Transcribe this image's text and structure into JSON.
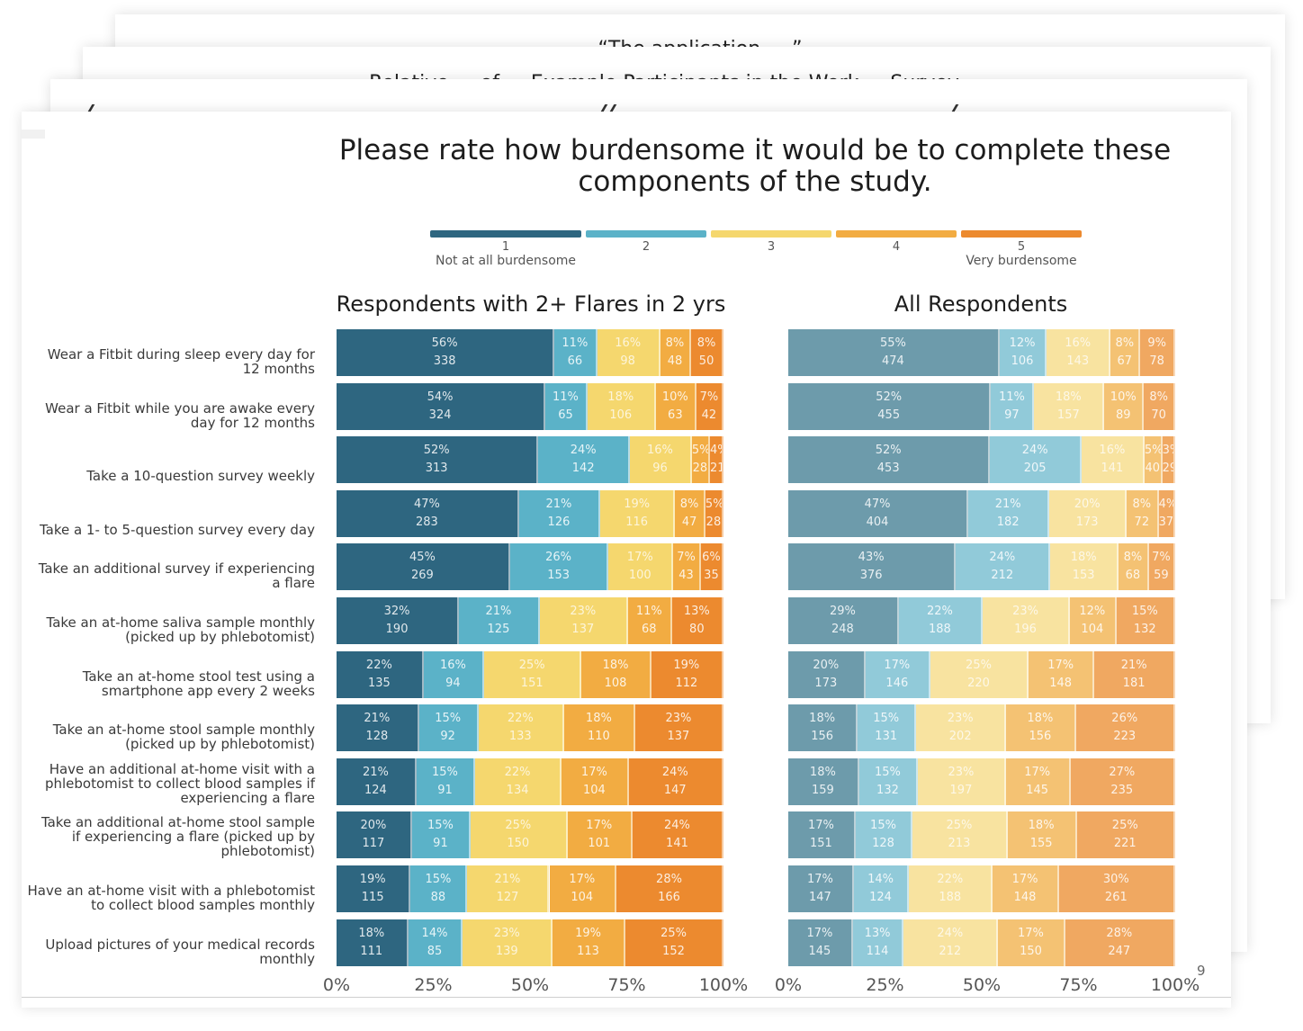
{
  "background_slides": [
    {
      "title_fragment": "“The application ... ”"
    },
    {
      "title_fragment": "Relative ... of ... Example Participants in the Work ... Survey ... "
    },
    {
      "title_fragment": ""
    }
  ],
  "slide": {
    "title": "Please rate how burdensome it would be to complete these components of the study.",
    "page_number": "9"
  },
  "legend": {
    "items": [
      {
        "value": "1",
        "label": "Not at all burdensome",
        "color": "#2e6680"
      },
      {
        "value": "2",
        "label": "",
        "color": "#5bb2c8"
      },
      {
        "value": "3",
        "label": "",
        "color": "#f5d76e"
      },
      {
        "value": "4",
        "label": "",
        "color": "#f2ac42"
      },
      {
        "value": "5",
        "label": "Very burdensome",
        "color": "#ec8a2f"
      }
    ]
  },
  "chart_data": [
    {
      "type": "bar",
      "orientation": "horizontal-stacked-100",
      "title": "Respondents with 2+ Flares in 2 yrs",
      "xlabel": "",
      "ylabel": "",
      "xlim": [
        0,
        100
      ],
      "xticks": [
        "0%",
        "25%",
        "50%",
        "75%",
        "100%"
      ],
      "legend_position": "top",
      "series_names": [
        "1 Not at all burdensome",
        "2",
        "3",
        "4",
        "5 Very burdensome"
      ],
      "categories": [
        "Wear a Fitbit during sleep every day for 12 months",
        "Wear a Fitbit while you are awake every day for 12 months",
        "Take a 10-question survey weekly",
        "Take a 1- to 5-question survey every day",
        "Take an additional survey if experiencing a flare",
        "Take an at-home saliva sample monthly (picked up by phlebotomist)",
        "Take an at-home stool test using a smartphone app every 2 weeks",
        "Take an at-home stool sample monthly (picked up by phlebotomist)",
        "Have an additional at-home visit with a phlebotomist to collect blood samples if experiencing a flare",
        "Take an additional at-home stool sample if experiencing a flare (picked up by phlebotomist)",
        "Have an at-home visit with a phlebotomist to collect blood samples monthly",
        "Upload pictures of your medical records monthly"
      ],
      "percents": [
        [
          56,
          11,
          16,
          8,
          8
        ],
        [
          54,
          11,
          18,
          10,
          7
        ],
        [
          52,
          24,
          16,
          5,
          4
        ],
        [
          47,
          21,
          19,
          8,
          5
        ],
        [
          45,
          26,
          17,
          7,
          6
        ],
        [
          32,
          21,
          23,
          11,
          13
        ],
        [
          22,
          16,
          25,
          18,
          19
        ],
        [
          21,
          15,
          22,
          18,
          23
        ],
        [
          21,
          15,
          22,
          17,
          24
        ],
        [
          20,
          15,
          25,
          17,
          24
        ],
        [
          19,
          15,
          21,
          17,
          28
        ],
        [
          18,
          14,
          23,
          19,
          25
        ]
      ],
      "counts": [
        [
          338,
          66,
          98,
          48,
          50
        ],
        [
          324,
          65,
          106,
          63,
          42
        ],
        [
          313,
          142,
          96,
          28,
          21
        ],
        [
          283,
          126,
          116,
          47,
          28
        ],
        [
          269,
          153,
          100,
          43,
          35
        ],
        [
          190,
          125,
          137,
          68,
          80
        ],
        [
          135,
          94,
          151,
          108,
          112
        ],
        [
          128,
          92,
          133,
          110,
          137
        ],
        [
          124,
          91,
          134,
          104,
          147
        ],
        [
          117,
          91,
          150,
          101,
          141
        ],
        [
          115,
          88,
          127,
          104,
          166
        ],
        [
          111,
          85,
          139,
          113,
          152
        ]
      ],
      "colors": [
        "#2e6680",
        "#5bb2c8",
        "#f5d76e",
        "#f2ac42",
        "#ec8a2f"
      ]
    },
    {
      "type": "bar",
      "orientation": "horizontal-stacked-100",
      "title": "All Respondents",
      "xlabel": "",
      "ylabel": "",
      "xlim": [
        0,
        100
      ],
      "xticks": [
        "0%",
        "25%",
        "50%",
        "75%",
        "100%"
      ],
      "legend_position": "top",
      "series_names": [
        "1 Not at all burdensome",
        "2",
        "3",
        "4",
        "5 Very burdensome"
      ],
      "percents": [
        [
          55,
          12,
          16,
          8,
          9
        ],
        [
          52,
          11,
          18,
          10,
          8
        ],
        [
          52,
          24,
          16,
          5,
          3
        ],
        [
          47,
          21,
          20,
          8,
          4
        ],
        [
          43,
          24,
          18,
          8,
          7
        ],
        [
          29,
          22,
          23,
          12,
          15
        ],
        [
          20,
          17,
          25,
          17,
          21
        ],
        [
          18,
          15,
          23,
          18,
          26
        ],
        [
          18,
          15,
          23,
          17,
          27
        ],
        [
          17,
          15,
          25,
          18,
          25
        ],
        [
          17,
          14,
          22,
          17,
          30
        ],
        [
          17,
          13,
          24,
          17,
          28
        ]
      ],
      "counts": [
        [
          474,
          106,
          143,
          67,
          78
        ],
        [
          455,
          97,
          157,
          89,
          70
        ],
        [
          453,
          205,
          141,
          40,
          29
        ],
        [
          404,
          182,
          173,
          72,
          37
        ],
        [
          376,
          212,
          153,
          68,
          59
        ],
        [
          248,
          188,
          196,
          104,
          132
        ],
        [
          173,
          146,
          220,
          148,
          181
        ],
        [
          156,
          131,
          202,
          156,
          223
        ],
        [
          159,
          132,
          197,
          145,
          235
        ],
        [
          151,
          128,
          213,
          155,
          221
        ],
        [
          147,
          124,
          188,
          148,
          261
        ],
        [
          145,
          114,
          212,
          150,
          247
        ]
      ],
      "colors": [
        "#6d9bab",
        "#91cad9",
        "#f8e3a0",
        "#f4c273",
        "#f0a861"
      ]
    }
  ],
  "row_label_lines": [
    [
      "Wear a Fitbit during sleep every day for",
      "12 months"
    ],
    [
      "Wear a Fitbit while you are awake every",
      "day for 12 months"
    ],
    [
      "Take a 10-question survey weekly"
    ],
    [
      "Take a 1- to 5-question survey every day"
    ],
    [
      "Take an additional survey if experiencing",
      "a flare"
    ],
    [
      "Take an at-home saliva sample monthly",
      "(picked up by phlebotomist)"
    ],
    [
      "Take an at-home stool test using a",
      "smartphone app every 2 weeks"
    ],
    [
      "Take an at-home stool sample monthly",
      "(picked up by phlebotomist)"
    ],
    [
      "Have an additional at-home visit with a",
      "phlebotomist to collect blood samples if",
      "experiencing a flare"
    ],
    [
      "Take an additional at-home stool sample",
      "if experiencing a flare (picked up by",
      "phlebotomist)"
    ],
    [
      "Have an at-home visit with a phlebotomist",
      "to collect blood samples monthly"
    ],
    [
      "Upload pictures of your medical records",
      "monthly"
    ]
  ]
}
